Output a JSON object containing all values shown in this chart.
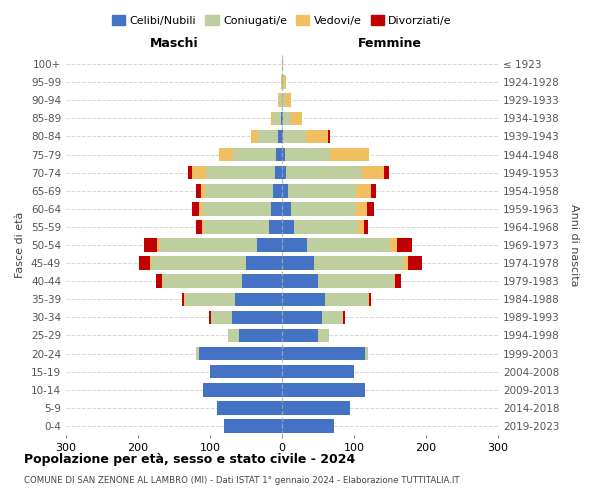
{
  "age_groups": [
    "0-4",
    "5-9",
    "10-14",
    "15-19",
    "20-24",
    "25-29",
    "30-34",
    "35-39",
    "40-44",
    "45-49",
    "50-54",
    "55-59",
    "60-64",
    "65-69",
    "70-74",
    "75-79",
    "80-84",
    "85-89",
    "90-94",
    "95-99",
    "100+"
  ],
  "birth_years": [
    "2019-2023",
    "2014-2018",
    "2009-2013",
    "2004-2008",
    "1999-2003",
    "1994-1998",
    "1989-1993",
    "1984-1988",
    "1979-1983",
    "1974-1978",
    "1969-1973",
    "1964-1968",
    "1959-1963",
    "1954-1958",
    "1949-1953",
    "1944-1948",
    "1939-1943",
    "1934-1938",
    "1929-1933",
    "1924-1928",
    "≤ 1923"
  ],
  "colors": {
    "celibe": "#4472C4",
    "coniugato": "#BECE9E",
    "vedovo": "#F0C060",
    "divorziato": "#C00000"
  },
  "maschi": {
    "celibe": [
      80,
      90,
      110,
      100,
      115,
      60,
      70,
      65,
      55,
      50,
      35,
      18,
      15,
      12,
      10,
      8,
      5,
      2,
      0,
      0,
      0
    ],
    "coniugato": [
      0,
      0,
      0,
      0,
      5,
      15,
      28,
      70,
      110,
      130,
      135,
      90,
      95,
      95,
      95,
      60,
      28,
      10,
      3,
      1,
      0
    ],
    "vedovo": [
      0,
      0,
      0,
      0,
      0,
      0,
      0,
      1,
      2,
      3,
      3,
      3,
      5,
      5,
      20,
      20,
      10,
      3,
      2,
      1,
      0
    ],
    "divorziato": [
      0,
      0,
      0,
      0,
      0,
      0,
      3,
      3,
      8,
      15,
      18,
      8,
      10,
      8,
      5,
      0,
      0,
      0,
      0,
      0,
      0
    ]
  },
  "femmine": {
    "celibe": [
      72,
      95,
      115,
      100,
      115,
      50,
      55,
      60,
      50,
      45,
      35,
      16,
      13,
      8,
      6,
      4,
      2,
      1,
      0,
      0,
      0
    ],
    "coniugato": [
      0,
      0,
      0,
      0,
      5,
      15,
      30,
      60,
      105,
      125,
      115,
      90,
      90,
      95,
      105,
      62,
      32,
      12,
      4,
      2,
      0
    ],
    "vedovo": [
      0,
      0,
      0,
      0,
      0,
      0,
      0,
      1,
      2,
      5,
      10,
      8,
      15,
      20,
      30,
      55,
      30,
      15,
      8,
      3,
      1
    ],
    "divorziato": [
      0,
      0,
      0,
      0,
      0,
      0,
      3,
      3,
      8,
      20,
      20,
      5,
      10,
      8,
      8,
      0,
      3,
      0,
      0,
      0,
      0
    ]
  },
  "xlim": 300,
  "title": "Popolazione per età, sesso e stato civile - 2024",
  "subtitle": "COMUNE DI SAN ZENONE AL LAMBRO (MI) - Dati ISTAT 1° gennaio 2024 - Elaborazione TUTTITALIA.IT",
  "ylabel_left": "Fasce di età",
  "ylabel_right": "Anni di nascita",
  "xlabel_maschi": "Maschi",
  "xlabel_femmine": "Femmine",
  "legend_labels": [
    "Celibi/Nubili",
    "Coniugati/e",
    "Vedovi/e",
    "Divorziati/e"
  ]
}
